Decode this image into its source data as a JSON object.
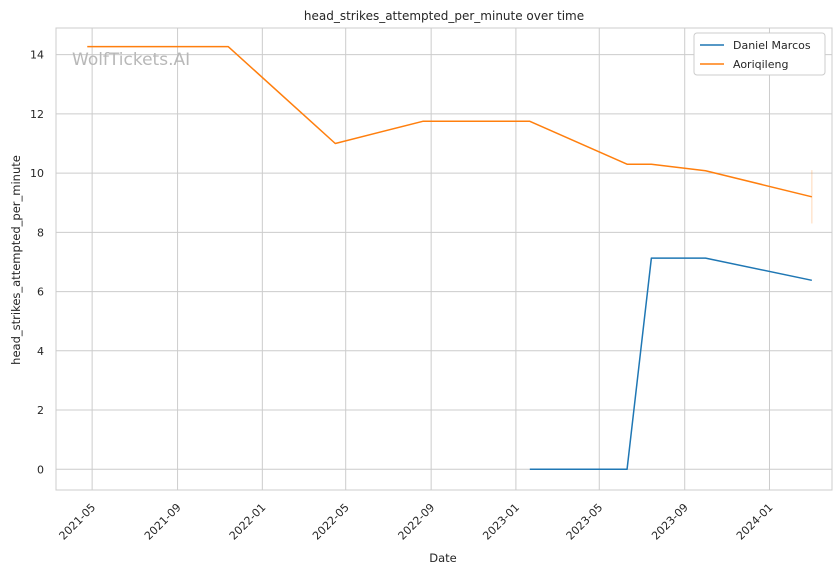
{
  "chart_data": {
    "type": "line",
    "title": "head_strikes_attempted_per_minute over time",
    "xlabel": "Date",
    "ylabel": "head_strikes_attempted_per_minute",
    "x_ticks": [
      "2021-05",
      "2021-09",
      "2022-01",
      "2022-05",
      "2022-09",
      "2023-01",
      "2023-05",
      "2023-09",
      "2024-01"
    ],
    "y_ticks": [
      0,
      2,
      4,
      6,
      8,
      10,
      12,
      14
    ],
    "ylim": [
      -0.7,
      14.9
    ],
    "xlim": [
      "2021-03-10",
      "2024-03-31"
    ],
    "grid": true,
    "legend_position": "top-right",
    "watermark": "WolfTickets.AI",
    "series": [
      {
        "name": "Daniel Marcos",
        "color": "#1f77b4",
        "points": [
          {
            "x": "2023-01-21",
            "y": 0.0
          },
          {
            "x": "2023-06-10",
            "y": 0.0
          },
          {
            "x": "2023-07-15",
            "y": 7.13
          },
          {
            "x": "2023-10-01",
            "y": 7.13
          },
          {
            "x": "2024-03-02",
            "y": 6.38
          }
        ]
      },
      {
        "name": "Aoriqileng",
        "color": "#ff7f0e",
        "points": [
          {
            "x": "2021-04-24",
            "y": 14.27
          },
          {
            "x": "2021-11-13",
            "y": 14.27
          },
          {
            "x": "2022-04-16",
            "y": 11.0
          },
          {
            "x": "2022-08-20",
            "y": 11.75
          },
          {
            "x": "2023-01-21",
            "y": 11.75
          },
          {
            "x": "2023-06-10",
            "y": 10.3
          },
          {
            "x": "2023-07-15",
            "y": 10.3
          },
          {
            "x": "2023-10-01",
            "y": 10.08
          },
          {
            "x": "2024-03-02",
            "y": 9.2
          }
        ],
        "error_range": {
          "x": "2024-03-02",
          "low": 8.3,
          "high": 10.1
        }
      }
    ]
  }
}
